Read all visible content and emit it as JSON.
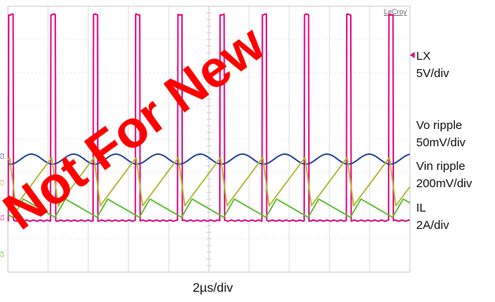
{
  "chart_data": {
    "type": "line",
    "instrument_brand": "LeCroy",
    "grid": true,
    "divisions": {
      "x": 10,
      "y": 8
    },
    "x_axis_label": "2µs/div",
    "period_divisions": 1.05,
    "series": [
      {
        "name": "LX",
        "scale": "5V/div",
        "color": "#e6007e",
        "channel": "C1",
        "waveform": "pulse",
        "low_level_div": 6.45,
        "high_level_div": 0.25,
        "duty": 0.11
      },
      {
        "name": "Vo ripple",
        "scale": "50mV/div",
        "color": "#1f3fa0",
        "channel": "C2",
        "waveform": "sine",
        "center_div": 4.6,
        "amplitude_div": 0.15
      },
      {
        "name": "Vin ripple",
        "scale": "200mV/div",
        "color": "#b5b83a",
        "channel": "C3",
        "waveform": "sawtooth",
        "min_div": 6.0,
        "max_div": 4.55
      },
      {
        "name": "IL",
        "scale": "2A/div",
        "color": "#5cbf33",
        "channel": "C4",
        "waveform": "triangle",
        "min_div": 6.35,
        "max_div": 5.8
      }
    ]
  },
  "watermark_text": "Not For New"
}
